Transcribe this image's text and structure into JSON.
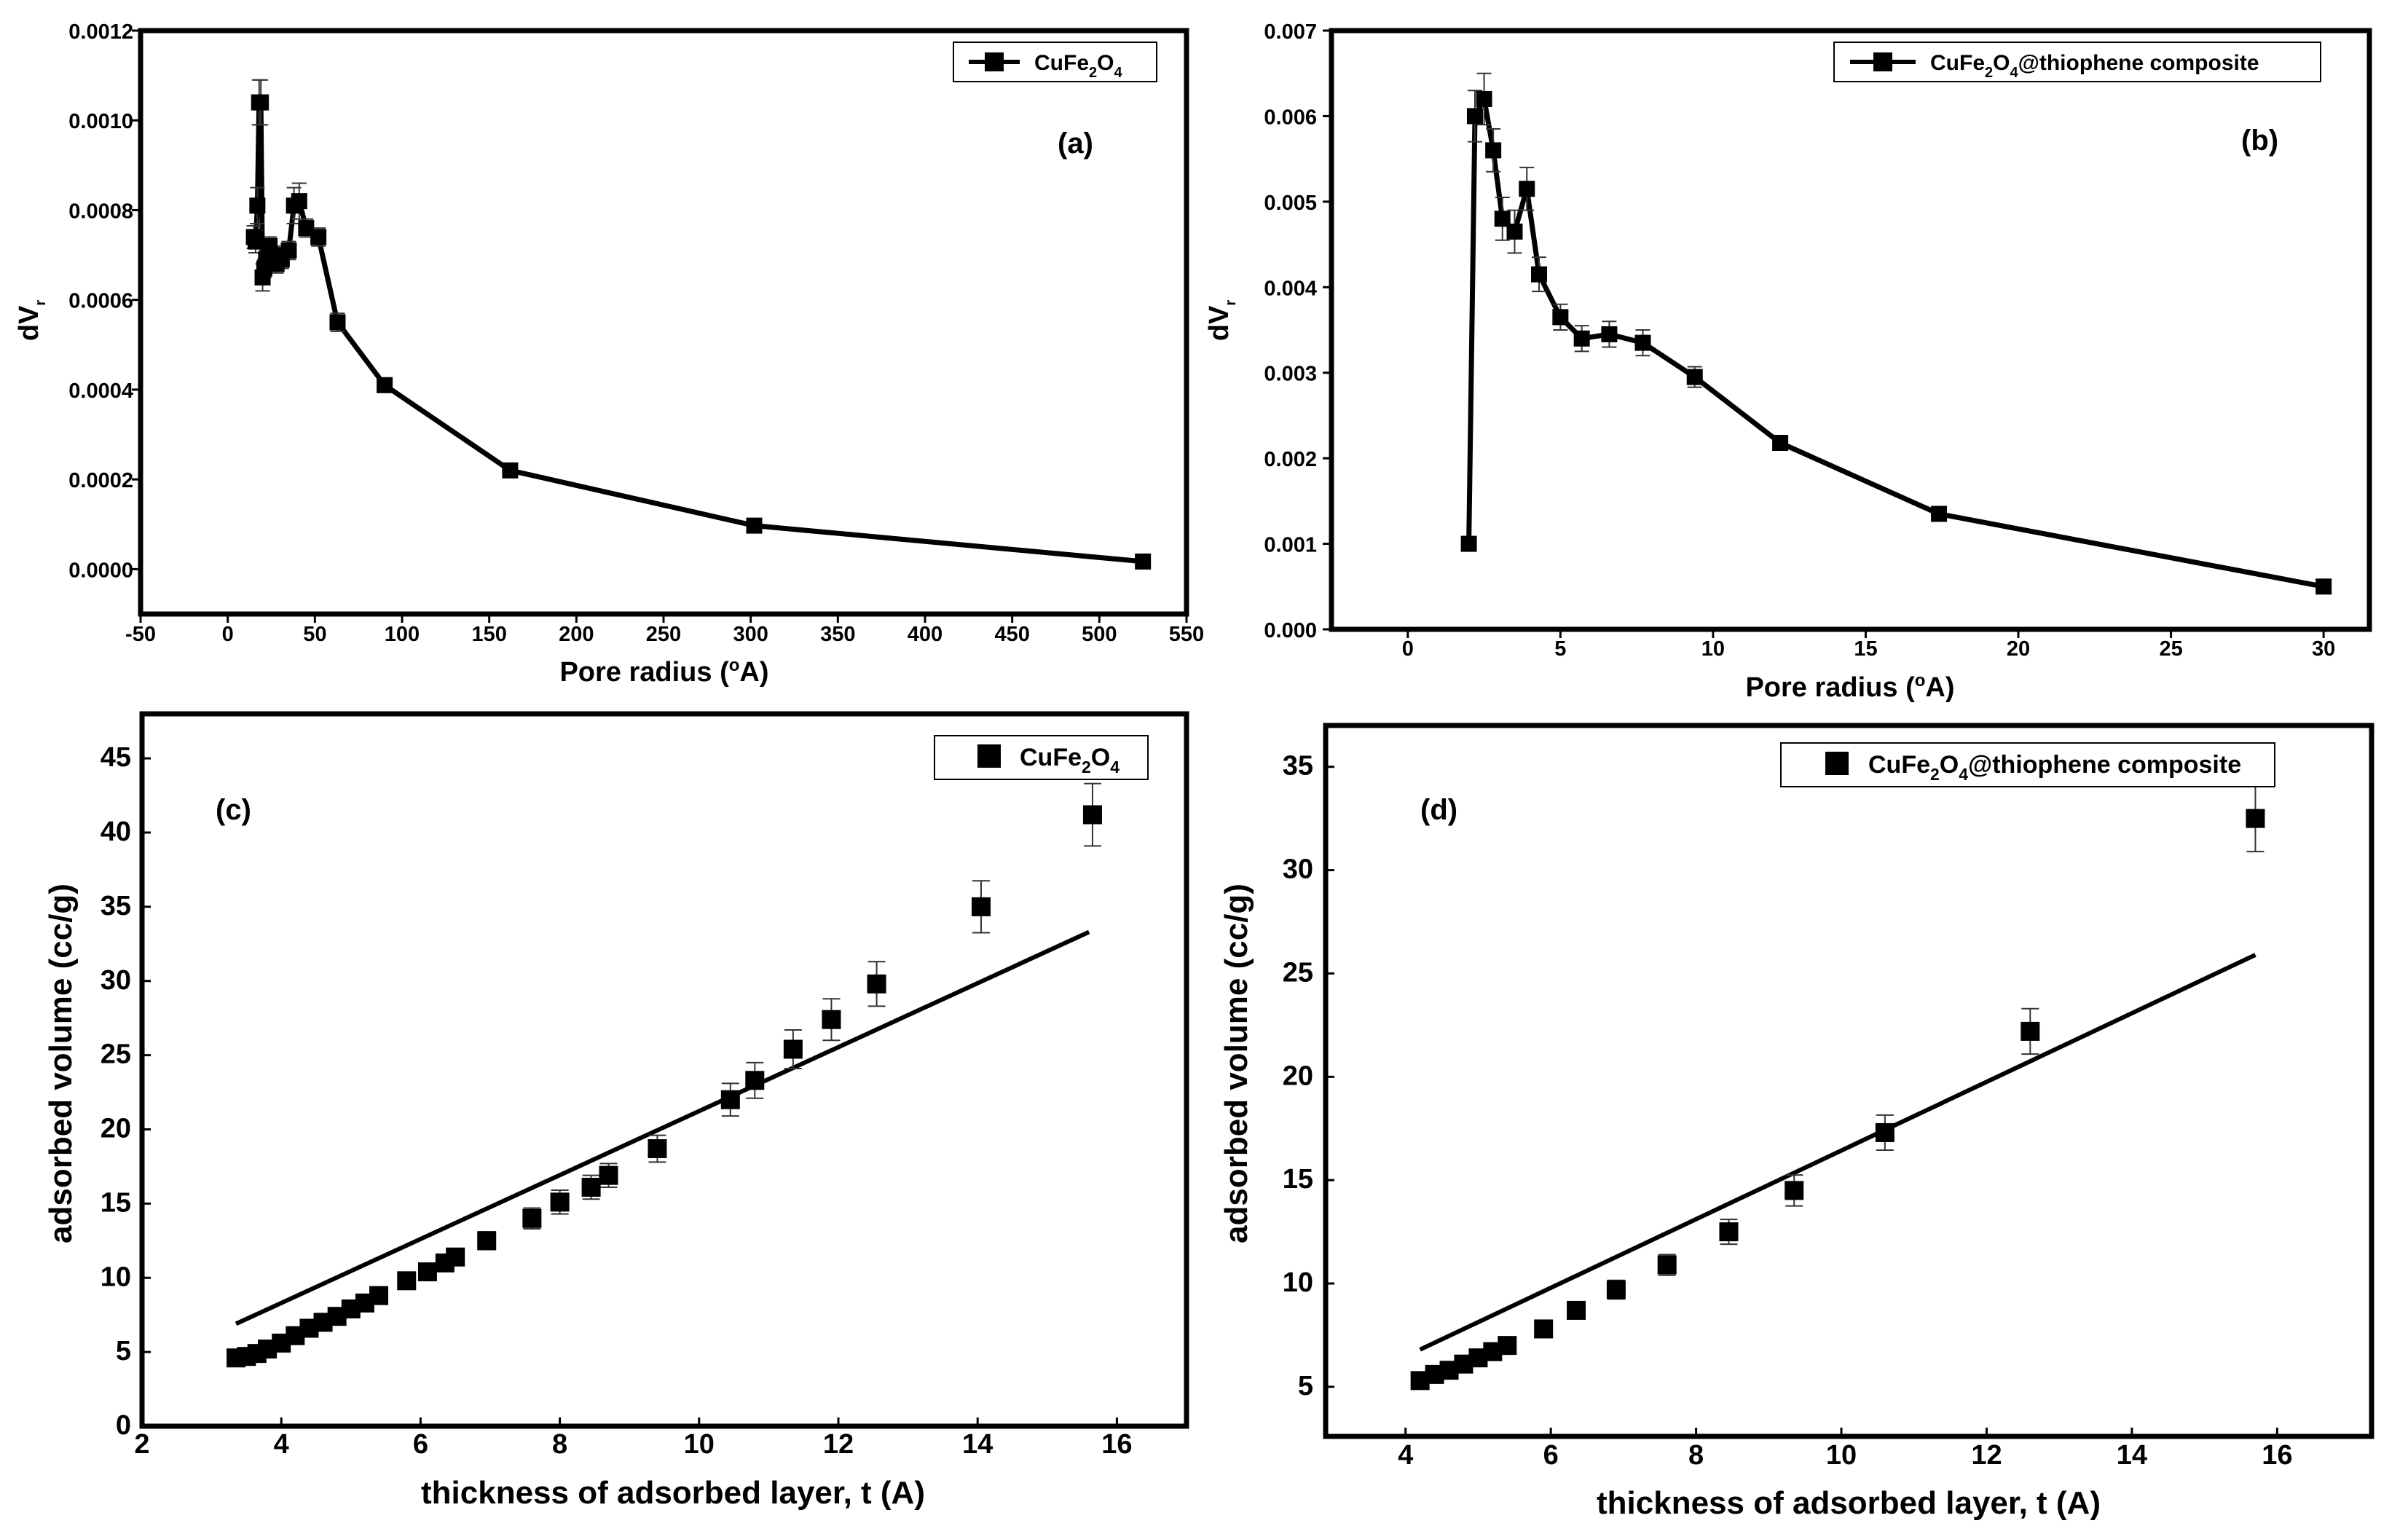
{
  "chart_data": [
    {
      "id": "a",
      "type": "line",
      "panel_label": "(a)",
      "xlabel": "Pore radius (°A)",
      "ylabel": "dV_r",
      "xlim": [
        -50,
        550
      ],
      "ylim": [
        -0.0001,
        0.0012
      ],
      "xticks": [
        "-50",
        "0",
        "50",
        "100",
        "150",
        "200",
        "250",
        "300",
        "350",
        "400",
        "450",
        "500",
        "550"
      ],
      "yticks": [
        "0.0000",
        "0.0002",
        "0.0004",
        "0.0006",
        "0.0008",
        "0.0010",
        "0.0012"
      ],
      "series": [
        {
          "name": "CuFe2O4",
          "legend": {
            "base1": "CuFe",
            "sub1": "2",
            "base2": "O",
            "sub2": "4",
            "tail": ""
          },
          "x": [
            15,
            16,
            17,
            18,
            19,
            20,
            21,
            22,
            24,
            26,
            28,
            31,
            35,
            38,
            41,
            45,
            52,
            63,
            90,
            162,
            302,
            525
          ],
          "y": [
            0.00074,
            0.00073,
            0.00081,
            0.00104,
            0.00104,
            0.00065,
            0.00067,
            0.00069,
            0.00072,
            0.0007,
            0.00068,
            0.00069,
            0.00071,
            0.00081,
            0.00082,
            0.00076,
            0.00074,
            0.00055,
            0.00041,
            0.00022,
            9.7e-05,
            1.7e-05
          ],
          "err": [
            2.5e-05,
            2.5e-05,
            4e-05,
            5e-05,
            5e-05,
            3e-05,
            2e-05,
            2e-05,
            2e-05,
            2e-05,
            2e-05,
            2e-05,
            2e-05,
            4e-05,
            4e-05,
            2e-05,
            2e-05,
            2e-05,
            1e-05,
            5e-06,
            4e-06,
            3e-06
          ]
        }
      ]
    },
    {
      "id": "b",
      "type": "line",
      "panel_label": "(b)",
      "xlabel": "Pore radius (°A)",
      "ylabel": "dV_r",
      "xlim": [
        -2.5,
        31.5
      ],
      "ylim": [
        0,
        0.007
      ],
      "xticks": [
        "0",
        "5",
        "10",
        "15",
        "20",
        "25",
        "30"
      ],
      "yticks": [
        "0.000",
        "0.001",
        "0.002",
        "0.003",
        "0.004",
        "0.005",
        "0.006",
        "0.007"
      ],
      "series": [
        {
          "name": "CuFe2O4@thiophene composite",
          "legend": {
            "base1": "CuFe",
            "sub1": "2",
            "base2": "O",
            "sub2": "4",
            "tail": "@thiophene composite"
          },
          "x": [
            2.0,
            2.2,
            2.5,
            2.8,
            3.1,
            3.5,
            3.9,
            4.3,
            5.0,
            5.7,
            6.6,
            7.7,
            9.4,
            12.2,
            17.4,
            30.0
          ],
          "y": [
            0.001,
            0.006,
            0.0062,
            0.0056,
            0.0048,
            0.00465,
            0.00515,
            0.00415,
            0.00365,
            0.0034,
            0.00345,
            0.00335,
            0.00295,
            0.00218,
            0.00135,
            0.0005
          ],
          "err": [
            2e-05,
            0.0003,
            0.0003,
            0.00025,
            0.00025,
            0.00025,
            0.00025,
            0.0002,
            0.00015,
            0.00015,
            0.00015,
            0.00015,
            0.00012,
            8e-05,
            3e-05,
            2e-05
          ]
        }
      ]
    },
    {
      "id": "c",
      "type": "scatter",
      "panel_label": "(c)",
      "xlabel": "thickness of adsorbed layer, t (A)",
      "ylabel": "adsorbed volume (cc/g)",
      "xlim": [
        2,
        17
      ],
      "ylim": [
        0,
        48
      ],
      "xticks": [
        "2",
        "4",
        "6",
        "8",
        "10",
        "12",
        "14",
        "16"
      ],
      "yticks": [
        "0",
        "5",
        "10",
        "15",
        "20",
        "25",
        "30",
        "35",
        "40",
        "45"
      ],
      "fit_line": {
        "x": [
          3.35,
          15.6
        ],
        "y": [
          6.9,
          33.3
        ]
      },
      "series": [
        {
          "name": "CuFe2O4",
          "legend": {
            "base1": "CuFe",
            "sub1": "2",
            "base2": "O",
            "sub2": "4",
            "tail": ""
          },
          "x": [
            3.35,
            3.5,
            3.65,
            3.8,
            4.0,
            4.2,
            4.4,
            4.6,
            4.8,
            5.0,
            5.2,
            5.4,
            5.8,
            6.1,
            6.35,
            6.5,
            6.95,
            7.6,
            8.0,
            8.45,
            8.7,
            9.4,
            10.45,
            10.8,
            11.35,
            11.9,
            12.55,
            14.05,
            15.65
          ],
          "y": [
            4.6,
            4.7,
            4.9,
            5.2,
            5.6,
            6.1,
            6.6,
            7.0,
            7.4,
            7.9,
            8.3,
            8.8,
            9.8,
            10.4,
            11.0,
            11.4,
            12.5,
            14.0,
            15.1,
            16.1,
            16.9,
            18.7,
            22.0,
            23.3,
            25.4,
            27.4,
            29.8,
            35.0,
            41.2
          ],
          "err": [
            0.2,
            0.2,
            0.2,
            0.3,
            0.3,
            0.3,
            0.3,
            0.3,
            0.3,
            0.3,
            0.3,
            0.3,
            0.4,
            0.4,
            0.5,
            0.5,
            0.6,
            0.7,
            0.8,
            0.8,
            0.8,
            0.9,
            1.1,
            1.2,
            1.3,
            1.4,
            1.5,
            1.75,
            2.1
          ]
        }
      ]
    },
    {
      "id": "d",
      "type": "scatter",
      "panel_label": "(d)",
      "xlabel": "thickness of adsorbed layer, t (A)",
      "ylabel": "adsorbed volume (cc/g)",
      "xlim": [
        2.9,
        17.3
      ],
      "ylim": [
        2.6,
        37.0
      ],
      "xticks": [
        "4",
        "6",
        "8",
        "10",
        "12",
        "14",
        "16"
      ],
      "yticks": [
        "5",
        "10",
        "15",
        "20",
        "25",
        "30",
        "35"
      ],
      "fit_line": {
        "x": [
          4.2,
          15.7
        ],
        "y": [
          6.8,
          25.9
        ]
      },
      "series": [
        {
          "name": "CuFe2O4@thiophene composite",
          "legend": {
            "base1": "CuFe",
            "sub1": "2",
            "base2": "O",
            "sub2": "4",
            "tail": "@thiophene composite"
          },
          "x": [
            4.2,
            4.4,
            4.6,
            4.8,
            5.0,
            5.2,
            5.4,
            5.9,
            6.35,
            6.9,
            7.6,
            8.45,
            9.35,
            10.6,
            12.6,
            15.7
          ],
          "y": [
            5.3,
            5.6,
            5.8,
            6.1,
            6.4,
            6.7,
            7.0,
            7.8,
            8.7,
            9.7,
            10.9,
            12.5,
            14.5,
            17.3,
            22.2,
            32.5
          ],
          "err": [
            0.25,
            0.25,
            0.25,
            0.25,
            0.3,
            0.3,
            0.3,
            0.35,
            0.4,
            0.45,
            0.5,
            0.6,
            0.75,
            0.85,
            1.1,
            1.6
          ]
        }
      ]
    }
  ]
}
